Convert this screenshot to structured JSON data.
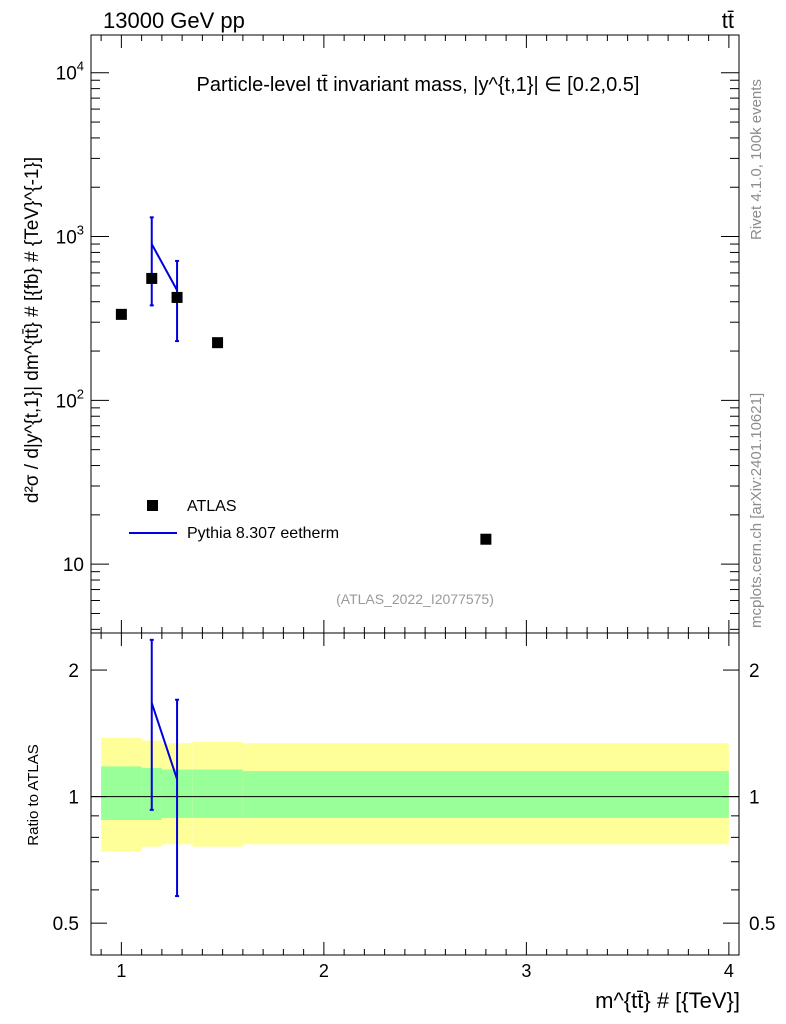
{
  "header": {
    "left": "13000 GeV pp",
    "right": "tt̄"
  },
  "side_texts": {
    "rivet": "Rivet 4.1.0,  100k events",
    "mcplots": "mcplots.cern.ch [arXiv:2401.10621]"
  },
  "colors": {
    "data": "#000000",
    "mc": "#0000dd",
    "band_inner": "#99ff99",
    "band_outer": "#ffff99",
    "side": "#8c8c8c"
  },
  "chart_data": [
    {
      "type": "scatter",
      "panel": "main",
      "title": "Particle-level tt̄ invariant mass, |y^{t,1}| ∈ [0.2,0.5]",
      "ylabel": "d²σ / d|y^{t,1}| dm^{tt̄} # [{fb} # {TeV}^{-1}]",
      "xlabel": "m^{tt̄} # [{TeV}]",
      "yscale": "log",
      "xlim": [
        0.85,
        4.05
      ],
      "ylim": [
        3.8,
        17000
      ],
      "y_ticks": [
        "10",
        "10^2",
        "10^3",
        "10^4"
      ],
      "x_ticks": [
        "1",
        "2",
        "3",
        "4"
      ],
      "watermark": "(ATLAS_2022_I2077575)",
      "legend": [
        "ATLAS",
        "Pythia 8.307 eetherm"
      ],
      "series": [
        {
          "name": "ATLAS",
          "x": [
            1.0,
            1.15,
            1.275,
            1.475,
            2.8
          ],
          "y": [
            335,
            555,
            425,
            225,
            14.2
          ]
        },
        {
          "name": "Pythia 8.307 eetherm",
          "x": [
            1.15,
            1.275
          ],
          "y": [
            900,
            470
          ],
          "yerr_low": [
            380,
            230
          ],
          "yerr_high": [
            1310,
            710
          ]
        }
      ]
    },
    {
      "type": "line",
      "panel": "ratio",
      "ylabel": "Ratio to ATLAS",
      "yscale": "log",
      "ylim": [
        0.42,
        2.45
      ],
      "y_ticks": [
        "0.5",
        "1",
        "2"
      ],
      "reference": 1,
      "mc_ratio": {
        "x": [
          1.15,
          1.275
        ],
        "y": [
          1.67,
          1.1
        ],
        "err_low": [
          0.93,
          0.58
        ],
        "err_high": [
          2.36,
          1.7
        ]
      },
      "bands": [
        {
          "x0": 0.9,
          "x1": 1.1,
          "inner": [
            0.88,
            1.18
          ],
          "outer": [
            0.74,
            1.38
          ]
        },
        {
          "x0": 1.1,
          "x1": 1.2,
          "inner": [
            0.88,
            1.17
          ],
          "outer": [
            0.76,
            1.36
          ]
        },
        {
          "x0": 1.2,
          "x1": 1.35,
          "inner": [
            0.89,
            1.16
          ],
          "outer": [
            0.77,
            1.34
          ]
        },
        {
          "x0": 1.35,
          "x1": 1.6,
          "inner": [
            0.89,
            1.16
          ],
          "outer": [
            0.76,
            1.35
          ]
        },
        {
          "x0": 1.6,
          "x1": 4.0,
          "inner": [
            0.89,
            1.15
          ],
          "outer": [
            0.77,
            1.34
          ]
        }
      ]
    }
  ]
}
